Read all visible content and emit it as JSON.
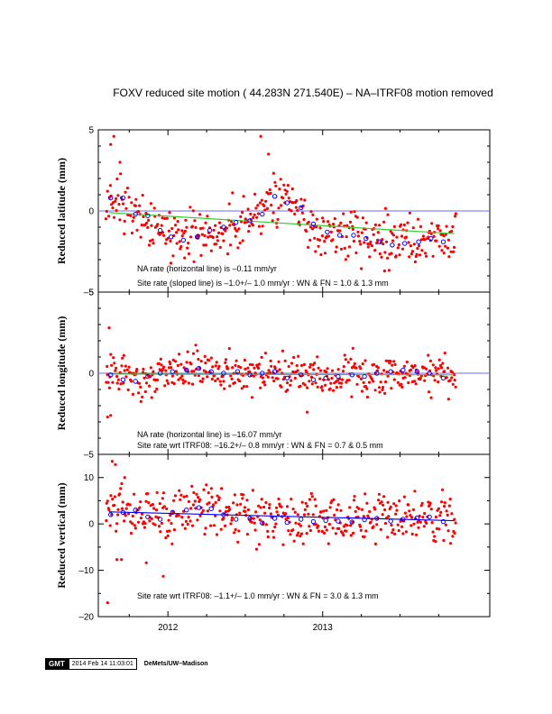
{
  "title": "FOXV reduced site motion ( 44.283N 271.540E) – NA–ITRF08 motion removed",
  "footer": {
    "logo": "GMT",
    "timestamp": "2014 Feb 14 11:03:01",
    "credit": "DeMets/UW–Madison"
  },
  "colors": {
    "points": "#ff0000",
    "monthly_means": "#0000ff",
    "horizontal_line": "#6b6bff",
    "sloped_line": "#33cc33"
  },
  "chart_data": [
    {
      "type": "scatter",
      "ylabel": "Reduced latitude (mm)",
      "ylim": [
        -5,
        5
      ],
      "yticks": [
        -5,
        0,
        5
      ],
      "xlim": [
        2011.55,
        2014.08
      ],
      "annotations": [
        "NA rate (horizontal line) is –0.11 mm/yr",
        "Site rate (sloped line) is  –1.0+/– 1.0 mm/yr : WN & FN =   1.0 &   1.3 mm"
      ],
      "horizontal_line": 0,
      "trend": [
        [
          2011.62,
          -0.1
        ],
        [
          2013.85,
          -1.4
        ]
      ],
      "envelope": [
        [
          2011.6,
          0.6
        ],
        [
          2011.75,
          0.5
        ],
        [
          2011.85,
          -0.8
        ],
        [
          2011.95,
          -1.4
        ],
        [
          2012.1,
          -1.7
        ],
        [
          2012.3,
          -1.2
        ],
        [
          2012.45,
          -0.9
        ],
        [
          2012.6,
          -0.3
        ],
        [
          2012.7,
          0.9
        ],
        [
          2012.8,
          0.3
        ],
        [
          2012.95,
          -1.0
        ],
        [
          2013.1,
          -1.6
        ],
        [
          2013.3,
          -1.8
        ],
        [
          2013.5,
          -1.9
        ],
        [
          2013.62,
          -2.0
        ],
        [
          2013.75,
          -1.7
        ],
        [
          2013.84,
          -1.8
        ]
      ],
      "monthly_means": [
        [
          2011.63,
          0.8
        ],
        [
          2011.71,
          0.8
        ],
        [
          2011.79,
          -0.2
        ],
        [
          2011.87,
          -0.3
        ],
        [
          2011.95,
          -1.2
        ],
        [
          2012.02,
          -1.6
        ],
        [
          2012.1,
          -1.8
        ],
        [
          2012.19,
          -1.6
        ],
        [
          2012.27,
          -1.2
        ],
        [
          2012.36,
          -1.0
        ],
        [
          2012.44,
          -0.7
        ],
        [
          2012.53,
          -0.6
        ],
        [
          2012.61,
          -0.2
        ],
        [
          2012.69,
          0.9
        ],
        [
          2012.77,
          0.5
        ],
        [
          2012.86,
          0.2
        ],
        [
          2012.94,
          -0.8
        ],
        [
          2013.03,
          -1.3
        ],
        [
          2013.11,
          -1.5
        ],
        [
          2013.2,
          -1.5
        ],
        [
          2013.28,
          -1.7
        ],
        [
          2013.37,
          -1.9
        ],
        [
          2013.45,
          -2.1
        ],
        [
          2013.53,
          -2.0
        ],
        [
          2013.62,
          -1.9
        ],
        [
          2013.7,
          -1.7
        ],
        [
          2013.78,
          -1.9
        ]
      ],
      "scatter": 0.75,
      "outliers": [
        [
          2011.63,
          4.1
        ],
        [
          2011.65,
          4.6
        ],
        [
          2011.69,
          3.0
        ],
        [
          2012.6,
          4.6
        ],
        [
          2012.65,
          3.5
        ],
        [
          2013.4,
          -3.7
        ]
      ],
      "n": 430
    },
    {
      "type": "scatter",
      "ylabel": "Reduced longitude (mm)",
      "ylim": [
        -5,
        5
      ],
      "yticks": [
        -5,
        0,
        5
      ],
      "xlim": [
        2011.55,
        2014.08
      ],
      "annotations": [
        "NA rate (horizontal line) is –16.07 mm/yr",
        "Site rate wrt ITRF08:  –16.2+/– 0.8 mm/yr : WN & FN =   0.7 &   0.5 mm"
      ],
      "horizontal_line": 0,
      "trend": [
        [
          2011.62,
          -0.05
        ],
        [
          2013.85,
          -0.1
        ]
      ],
      "envelope": [
        [
          2011.6,
          -0.1
        ],
        [
          2011.7,
          -0.3
        ],
        [
          2011.8,
          -0.5
        ],
        [
          2011.9,
          -0.2
        ],
        [
          2012.0,
          0.0
        ],
        [
          2012.1,
          0.3
        ],
        [
          2012.2,
          0.4
        ],
        [
          2012.3,
          0.3
        ],
        [
          2012.4,
          0.1
        ],
        [
          2012.5,
          -0.1
        ],
        [
          2012.6,
          0.1
        ],
        [
          2012.7,
          0.0
        ],
        [
          2012.8,
          -0.3
        ],
        [
          2012.9,
          -0.2
        ],
        [
          2013.0,
          -0.4
        ],
        [
          2013.1,
          -0.3
        ],
        [
          2013.2,
          0.0
        ],
        [
          2013.3,
          -0.2
        ],
        [
          2013.4,
          0.1
        ],
        [
          2013.5,
          0.2
        ],
        [
          2013.6,
          0.1
        ],
        [
          2013.7,
          0.0
        ],
        [
          2013.84,
          -0.3
        ]
      ],
      "monthly_means": [
        [
          2011.63,
          -0.1
        ],
        [
          2011.71,
          -0.4
        ],
        [
          2011.79,
          -0.5
        ],
        [
          2011.87,
          -0.2
        ],
        [
          2011.95,
          0.0
        ],
        [
          2012.03,
          0.1
        ],
        [
          2012.12,
          0.2
        ],
        [
          2012.2,
          0.3
        ],
        [
          2012.28,
          0.1
        ],
        [
          2012.36,
          0.0
        ],
        [
          2012.45,
          0.1
        ],
        [
          2012.53,
          -0.1
        ],
        [
          2012.61,
          0.0
        ],
        [
          2012.69,
          0.1
        ],
        [
          2012.77,
          -0.3
        ],
        [
          2012.86,
          -0.1
        ],
        [
          2012.94,
          -0.4
        ],
        [
          2013.02,
          -0.3
        ],
        [
          2013.1,
          -0.2
        ],
        [
          2013.19,
          -0.1
        ],
        [
          2013.27,
          -0.2
        ],
        [
          2013.35,
          0.0
        ],
        [
          2013.44,
          0.1
        ],
        [
          2013.52,
          0.2
        ],
        [
          2013.61,
          0.1
        ],
        [
          2013.69,
          0.0
        ],
        [
          2013.78,
          -0.3
        ]
      ],
      "scatter": 0.6,
      "outliers": [
        [
          2011.62,
          2.8
        ],
        [
          2011.61,
          -2.7
        ],
        [
          2011.63,
          -2.6
        ],
        [
          2012.9,
          -2.4
        ]
      ],
      "n": 430
    },
    {
      "type": "scatter",
      "ylabel": "Reduced vertical (mm)",
      "ylim": [
        -20,
        15
      ],
      "yticks": [
        -20,
        -10,
        0,
        10
      ],
      "xlim": [
        2011.55,
        2014.08
      ],
      "xticks": [
        2012,
        2013
      ],
      "xticklabels": [
        "2012",
        "2013"
      ],
      "annotations": [
        "Site rate wrt ITRF08:  –1.1+/– 1.0 mm/yr : WN & FN =   3.0 &   1.3 mm"
      ],
      "trend": [
        [
          2011.62,
          2.6
        ],
        [
          2013.85,
          0.7
        ]
      ],
      "envelope": [
        [
          2011.6,
          2.5
        ],
        [
          2011.7,
          3.0
        ],
        [
          2011.8,
          2.4
        ],
        [
          2011.9,
          1.5
        ],
        [
          2012.0,
          2.6
        ],
        [
          2012.1,
          3.0
        ],
        [
          2012.2,
          3.5
        ],
        [
          2012.3,
          3.2
        ],
        [
          2012.4,
          1.8
        ],
        [
          2012.5,
          1.0
        ],
        [
          2012.6,
          0.5
        ],
        [
          2012.7,
          1.0
        ],
        [
          2012.8,
          0.2
        ],
        [
          2012.9,
          1.0
        ],
        [
          2013.0,
          0.6
        ],
        [
          2013.1,
          0.8
        ],
        [
          2013.2,
          0.5
        ],
        [
          2013.3,
          0.9
        ],
        [
          2013.4,
          1.2
        ],
        [
          2013.5,
          0.6
        ],
        [
          2013.6,
          1.2
        ],
        [
          2013.7,
          1.6
        ],
        [
          2013.84,
          0.8
        ]
      ],
      "monthly_means": [
        [
          2011.63,
          2.0
        ],
        [
          2011.71,
          2.5
        ],
        [
          2011.79,
          3.0
        ],
        [
          2011.87,
          1.5
        ],
        [
          2011.95,
          1.0
        ],
        [
          2012.03,
          2.5
        ],
        [
          2012.12,
          3.0
        ],
        [
          2012.2,
          3.5
        ],
        [
          2012.28,
          3.3
        ],
        [
          2012.36,
          2.0
        ],
        [
          2012.44,
          1.0
        ],
        [
          2012.53,
          1.2
        ],
        [
          2012.61,
          0.2
        ],
        [
          2012.69,
          1.2
        ],
        [
          2012.77,
          0.3
        ],
        [
          2012.86,
          1.0
        ],
        [
          2012.94,
          0.5
        ],
        [
          2013.02,
          0.7
        ],
        [
          2013.1,
          0.6
        ],
        [
          2013.19,
          0.4
        ],
        [
          2013.27,
          0.9
        ],
        [
          2013.35,
          1.2
        ],
        [
          2013.44,
          0.6
        ],
        [
          2013.52,
          1.0
        ],
        [
          2013.61,
          1.3
        ],
        [
          2013.69,
          1.5
        ],
        [
          2013.78,
          0.5
        ]
      ],
      "scatter": 2.6,
      "outliers": [
        [
          2011.61,
          -17.0
        ],
        [
          2011.64,
          13.5
        ],
        [
          2011.66,
          12.8
        ],
        [
          2011.72,
          10.0
        ],
        [
          2011.67,
          -7.7
        ],
        [
          2011.7,
          -7.7
        ],
        [
          2011.86,
          -8.4
        ],
        [
          2011.97,
          -11.3
        ]
      ],
      "n": 430
    }
  ]
}
